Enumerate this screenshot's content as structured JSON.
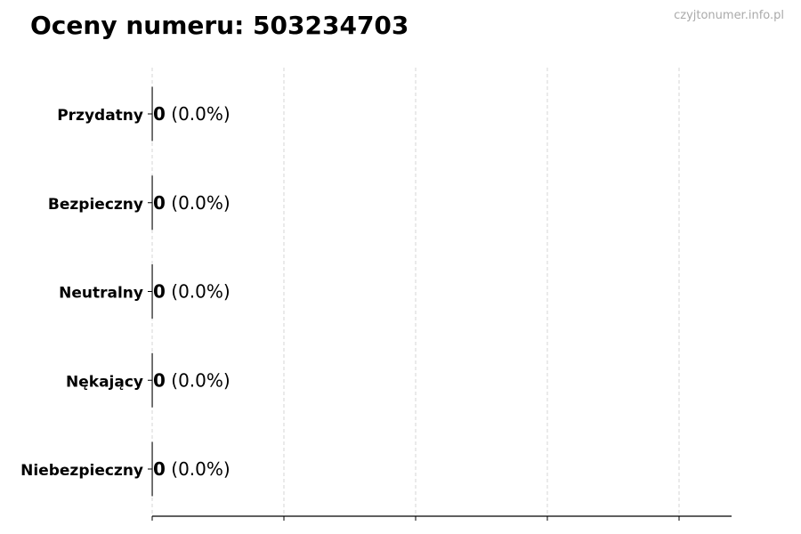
{
  "title": "Oceny numeru: 503234703",
  "watermark": "czyjtonumer.info.pl",
  "chart_data": {
    "type": "bar",
    "orientation": "horizontal",
    "title": "Oceny numeru: 503234703",
    "categories": [
      "Przydatny",
      "Bezpieczny",
      "Neutralny",
      "Nękający",
      "Niebezpieczny"
    ],
    "values": [
      0,
      0,
      0,
      0,
      0
    ],
    "data_labels": [
      {
        "count": "0",
        "percent": "(0.0%)"
      },
      {
        "count": "0",
        "percent": "(0.0%)"
      },
      {
        "count": "0",
        "percent": "(0.0%)"
      },
      {
        "count": "0",
        "percent": "(0.0%)"
      },
      {
        "count": "0",
        "percent": "(0.0%)"
      }
    ],
    "xlabel": "",
    "ylabel": "",
    "x_tick_labels_visible": false,
    "grid": "vertical dashed",
    "colors": {
      "bar_edge": "#000000",
      "grid": "#cccccc",
      "label": "#000000"
    }
  }
}
